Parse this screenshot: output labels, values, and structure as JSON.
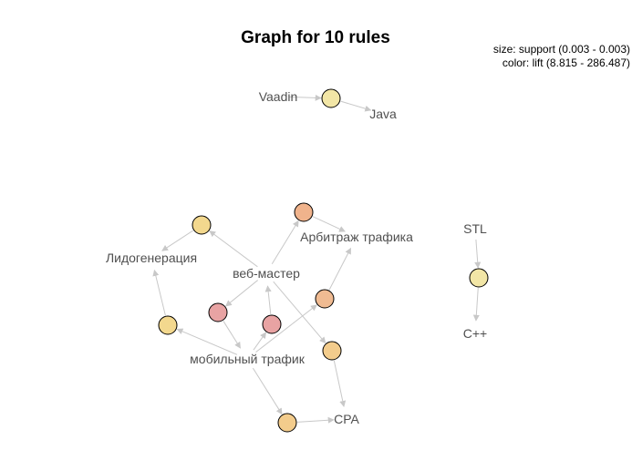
{
  "title": "Graph for 10 rules",
  "legend": {
    "size": "size: support (0.003 - 0.003)",
    "color": "color: lift (8.815 - 286.487)"
  },
  "items": [
    {
      "id": "vaadin",
      "label": "Vaadin"
    },
    {
      "id": "java",
      "label": "Java"
    },
    {
      "id": "lidogeneratsiya",
      "label": "Лидогенерация"
    },
    {
      "id": "arbitrazh",
      "label": "Арбитраж трафика"
    },
    {
      "id": "vebmaster",
      "label": "веб-мастер"
    },
    {
      "id": "mobilnyi",
      "label": "мобильный трафик"
    },
    {
      "id": "cpa",
      "label": "CPA"
    },
    {
      "id": "stl",
      "label": "STL"
    },
    {
      "id": "cpp",
      "label": "C++"
    }
  ],
  "rules": [
    {
      "id": "r1",
      "lhs": [
        "vaadin"
      ],
      "rhs": "java",
      "color": "#f2e6a6"
    },
    {
      "id": "r2",
      "lhs": [
        "vebmaster"
      ],
      "rhs": "lidogeneratsiya",
      "color": "#f3d88e"
    },
    {
      "id": "r3",
      "lhs": [
        "vebmaster"
      ],
      "rhs": "arbitrazh",
      "color": "#f0b38c"
    },
    {
      "id": "r4",
      "lhs": [
        "mobilnyi"
      ],
      "rhs": "lidogeneratsiya",
      "color": "#f3d88e"
    },
    {
      "id": "r5",
      "lhs": [
        "mobilnyi"
      ],
      "rhs": "arbitrazh",
      "color": "#f0bb92"
    },
    {
      "id": "r6",
      "lhs": [
        "vebmaster"
      ],
      "rhs": "mobilnyi",
      "color": "#e8a3a3"
    },
    {
      "id": "r7",
      "lhs": [
        "mobilnyi"
      ],
      "rhs": "vebmaster",
      "color": "#e8a3a3"
    },
    {
      "id": "r8",
      "lhs": [
        "vebmaster"
      ],
      "rhs": "cpa",
      "color": "#f3cc8c"
    },
    {
      "id": "r9",
      "lhs": [
        "mobilnyi"
      ],
      "rhs": "cpa",
      "color": "#f3cc8c"
    },
    {
      "id": "r10",
      "lhs": [
        "stl"
      ],
      "rhs": "cpp",
      "color": "#f2e6a6"
    }
  ]
}
